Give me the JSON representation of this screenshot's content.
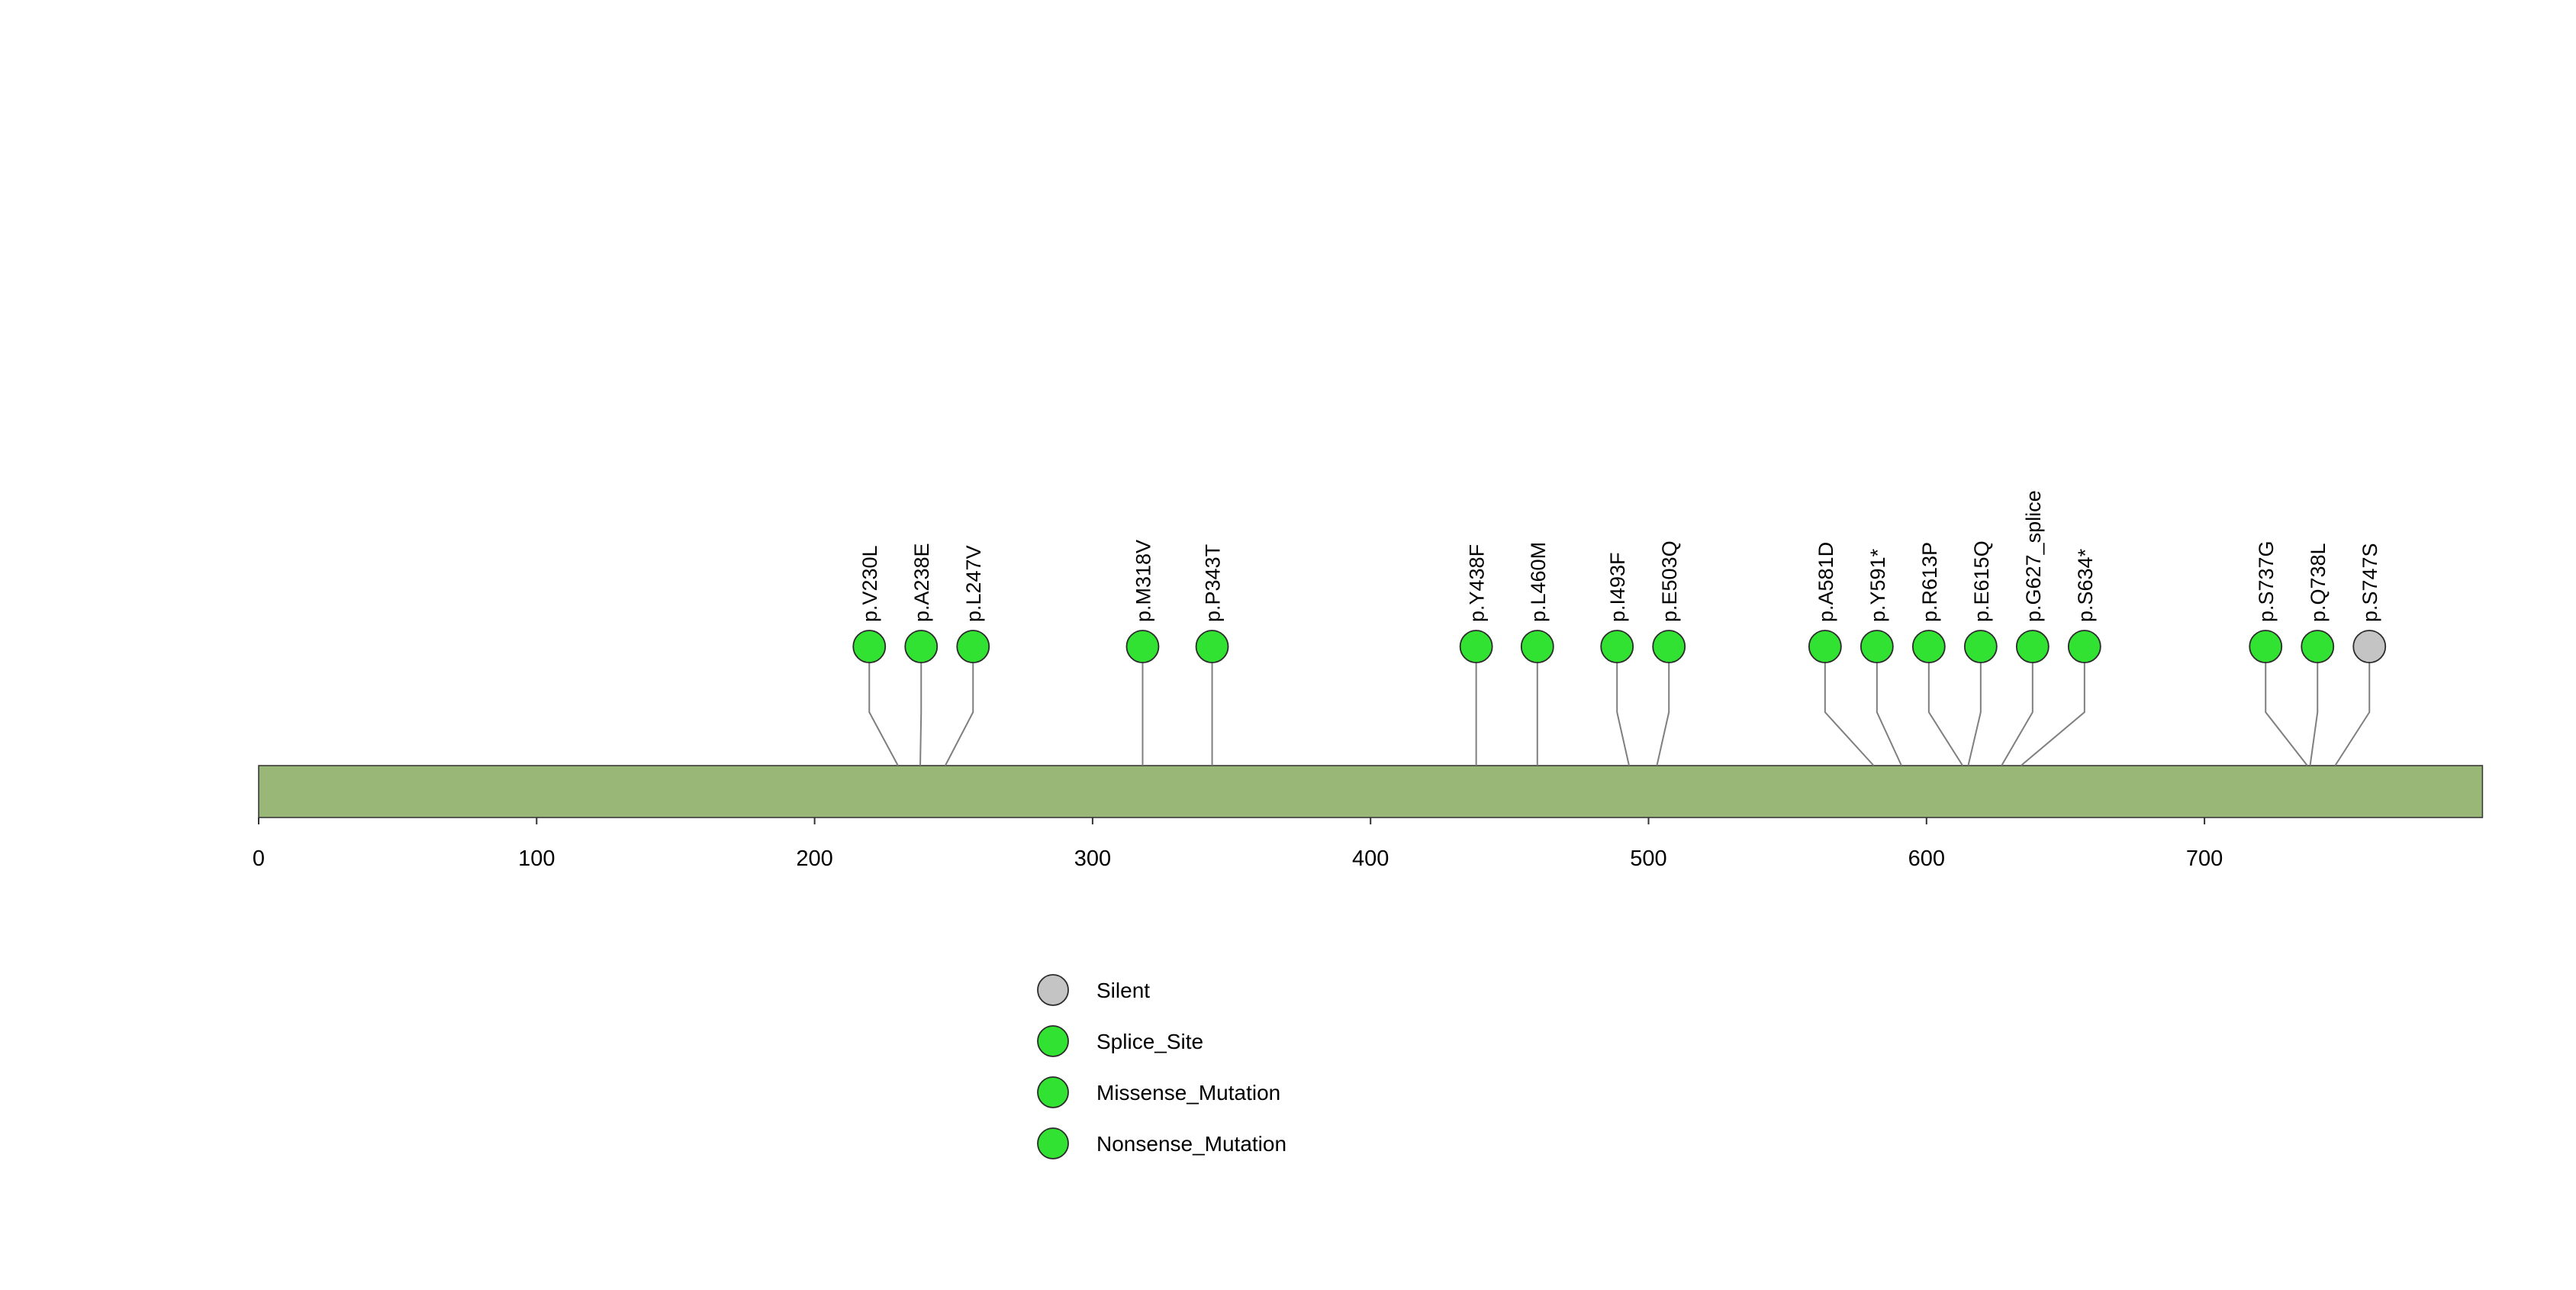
{
  "figure": {
    "background": "#FFFFFF"
  },
  "chart_data": {
    "type": "lollipop",
    "title": "",
    "xlabel": "",
    "ylabel": "",
    "axis": {
      "min": 0,
      "max": 800,
      "ticks": [
        0,
        100,
        200,
        300,
        400,
        500,
        600,
        700
      ]
    },
    "protein_bar": {
      "start": 0,
      "end": 800,
      "color": "#99B877",
      "border_color": "#3A3A3A"
    },
    "stem_color": "#7F7F7F",
    "marker_colors": {
      "Silent": "#C4C4C4",
      "Splice_Site": "#32E232",
      "Missense_Mutation": "#32E232",
      "Nonsense_Mutation": "#32E232"
    },
    "mutations": [
      {
        "label": "p.V230L",
        "position": 230,
        "type": "Missense_Mutation"
      },
      {
        "label": "p.A238E",
        "position": 238,
        "type": "Missense_Mutation"
      },
      {
        "label": "p.L247V",
        "position": 247,
        "type": "Missense_Mutation"
      },
      {
        "label": "p.M318V",
        "position": 318,
        "type": "Missense_Mutation"
      },
      {
        "label": "p.P343T",
        "position": 343,
        "type": "Missense_Mutation"
      },
      {
        "label": "p.Y438F",
        "position": 438,
        "type": "Missense_Mutation"
      },
      {
        "label": "p.L460M",
        "position": 460,
        "type": "Missense_Mutation"
      },
      {
        "label": "p.I493F",
        "position": 493,
        "type": "Missense_Mutation"
      },
      {
        "label": "p.E503Q",
        "position": 503,
        "type": "Missense_Mutation"
      },
      {
        "label": "p.A581D",
        "position": 581,
        "type": "Missense_Mutation"
      },
      {
        "label": "p.Y591*",
        "position": 591,
        "type": "Nonsense_Mutation"
      },
      {
        "label": "p.R613P",
        "position": 613,
        "type": "Missense_Mutation"
      },
      {
        "label": "p.E615Q",
        "position": 615,
        "type": "Missense_Mutation"
      },
      {
        "label": "p.G627_splice",
        "position": 627,
        "type": "Splice_Site"
      },
      {
        "label": "p.S634*",
        "position": 634,
        "type": "Nonsense_Mutation"
      },
      {
        "label": "p.S737G",
        "position": 737,
        "type": "Missense_Mutation"
      },
      {
        "label": "p.Q738L",
        "position": 738,
        "type": "Missense_Mutation"
      },
      {
        "label": "p.S747S",
        "position": 747,
        "type": "Silent"
      }
    ],
    "legend": {
      "position": "bottom-left",
      "items": [
        {
          "label": "Silent",
          "type": "Silent"
        },
        {
          "label": "Splice_Site",
          "type": "Splice_Site"
        },
        {
          "label": "Missense_Mutation",
          "type": "Missense_Mutation"
        },
        {
          "label": "Nonsense_Mutation",
          "type": "Nonsense_Mutation"
        }
      ]
    }
  }
}
